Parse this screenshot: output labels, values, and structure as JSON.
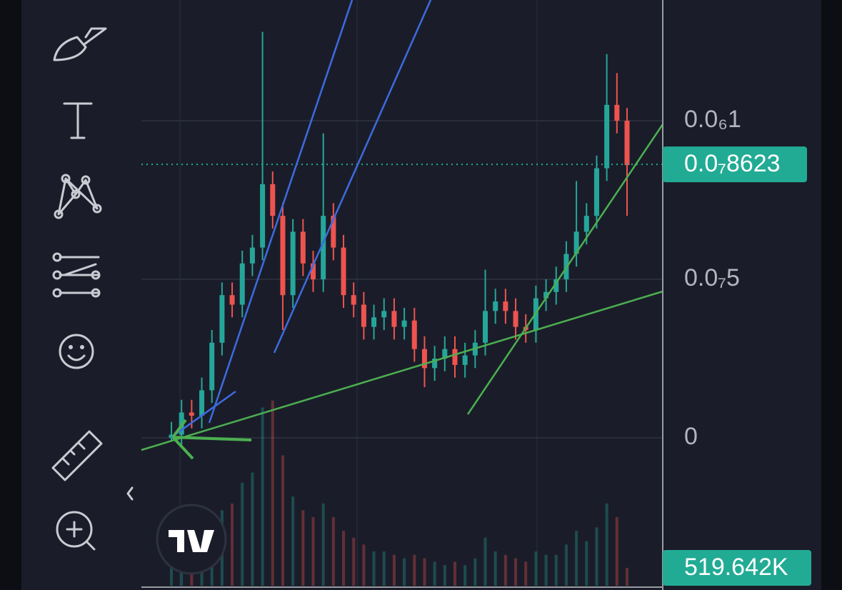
{
  "chart_data": {
    "type": "candlestick",
    "ylim": [
      -4.797e-08,
      1.3806e-07
    ],
    "yticks": [
      {
        "value": 0,
        "label": "0"
      },
      {
        "value": 5e-08,
        "label": "0.0₇5"
      },
      {
        "value": 1e-07,
        "label": "0.0₆1"
      }
    ],
    "grid": true,
    "up_color": "#26a69a",
    "down_color": "#ef5350",
    "price_line": {
      "value": 8.623e-08,
      "label": "0.0₇8623",
      "color": "#22ab94"
    },
    "volume_label": {
      "value": 519642,
      "label": "519.642K"
    },
    "open": [
      0,
      1e-09,
      8e-09,
      7e-09,
      1.5e-08,
      3e-08,
      4.5e-08,
      4.2e-08,
      5.5e-08,
      6e-08,
      8e-08,
      7e-08,
      4.5e-08,
      6.5e-08,
      5.5e-08,
      5e-08,
      7e-08,
      6e-08,
      4.5e-08,
      4.2e-08,
      3.5e-08,
      3.8e-08,
      4e-08,
      3.5e-08,
      3.7e-08,
      2.8e-08,
      2.2e-08,
      2.5e-08,
      2.8e-08,
      2.3e-08,
      2.6e-08,
      3e-08,
      4e-08,
      4.3e-08,
      4e-08,
      3.5e-08,
      3.4e-08,
      4.4e-08,
      4.6e-08,
      5e-08,
      5.8e-08,
      6.5e-08,
      7e-08,
      8.5e-08,
      1.05e-07,
      1e-07
    ],
    "high": [
      5e-09,
      1.2e-08,
      1.2e-08,
      1.9e-08,
      3.4e-08,
      4.9e-08,
      4.9e-08,
      5.9e-08,
      6.4e-08,
      1.28e-07,
      8.4e-08,
      7.4e-08,
      6.9e-08,
      6.9e-08,
      5.9e-08,
      9.6e-08,
      7.4e-08,
      6.4e-08,
      4.9e-08,
      4.6e-08,
      4.2e-08,
      4.4e-08,
      4.4e-08,
      4.1e-08,
      4.1e-08,
      3.2e-08,
      2.9e-08,
      3.2e-08,
      3.2e-08,
      3e-08,
      3.4e-08,
      5.3e-08,
      4.7e-08,
      4.7e-08,
      4.4e-08,
      3.9e-08,
      4.8e-08,
      5e-08,
      5.4e-08,
      6.2e-08,
      8.1e-08,
      7.4e-08,
      8.9e-08,
      1.21e-07,
      1.15e-07,
      1.04e-07
    ],
    "low": [
      -1e-09,
      -3e-09,
      3e-09,
      3e-09,
      1.1e-08,
      2.6e-08,
      3.8e-08,
      3.8e-08,
      5.1e-08,
      5.6e-08,
      6.6e-08,
      3.4e-08,
      4.1e-08,
      5.1e-08,
      4.6e-08,
      4.6e-08,
      5.6e-08,
      4.1e-08,
      3.8e-08,
      3.1e-08,
      3.1e-08,
      3.4e-08,
      3.1e-08,
      3.1e-08,
      2.4e-08,
      1.6e-08,
      1.8e-08,
      2.1e-08,
      1.9e-08,
      1.9e-08,
      2.2e-08,
      2.6e-08,
      3.6e-08,
      3.6e-08,
      3.1e-08,
      3e-08,
      3e-08,
      4e-08,
      4.2e-08,
      4.6e-08,
      5.4e-08,
      6.1e-08,
      6.6e-08,
      8.1e-08,
      9.6e-08,
      7e-08
    ],
    "close": [
      1e-09,
      8e-09,
      7e-09,
      1.5e-08,
      3e-08,
      4.5e-08,
      4.2e-08,
      5.5e-08,
      6e-08,
      8e-08,
      7e-08,
      4.5e-08,
      6.5e-08,
      5.5e-08,
      5e-08,
      7e-08,
      6e-08,
      4.5e-08,
      4.2e-08,
      3.5e-08,
      3.8e-08,
      4e-08,
      3.5e-08,
      3.7e-08,
      2.8e-08,
      2.2e-08,
      2.5e-08,
      2.8e-08,
      2.3e-08,
      2.6e-08,
      3e-08,
      4e-08,
      4.3e-08,
      4e-08,
      3.5e-08,
      3.4e-08,
      4.4e-08,
      4.6e-08,
      5e-08,
      5.8e-08,
      6.5e-08,
      7e-08,
      8.5e-08,
      1.05e-07,
      1e-07,
      8.6e-08
    ],
    "volume": [
      600000,
      800000,
      700000,
      1200000,
      1800000,
      2200000,
      2400000,
      3000000,
      3300000,
      5200000,
      5400000,
      3800000,
      2600000,
      2200000,
      2000000,
      2400000,
      2000000,
      1600000,
      1400000,
      1200000,
      1000000,
      1000000,
      900000,
      800000,
      900000,
      800000,
      700000,
      600000,
      700000,
      600000,
      800000,
      1400000,
      1000000,
      900000,
      800000,
      700000,
      1000000,
      900000,
      900000,
      1200000,
      1600000,
      1300000,
      1700000,
      2400000,
      2000000,
      519642
    ]
  }
}
